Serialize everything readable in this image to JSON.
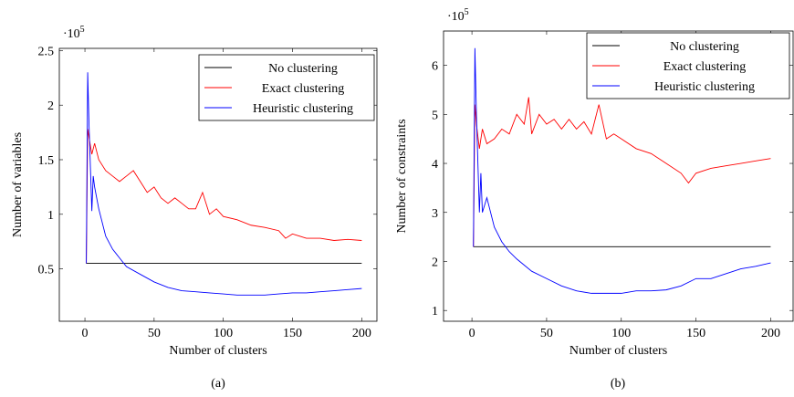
{
  "chart_data": [
    {
      "type": "line",
      "caption": "(a)",
      "x_label": "Number of clusters",
      "y_label": "Number of variables",
      "y_multiplier": {
        "base": "·10",
        "exponent": "5"
      },
      "xlim": [
        -18.5,
        211
      ],
      "xticks": [
        0,
        50,
        100,
        150,
        200
      ],
      "ylim": [
        0.02,
        2.52
      ],
      "yticks": [
        0.5,
        1,
        1.5,
        2,
        2.5
      ],
      "legend": "upper right",
      "series": [
        {
          "name": "No clustering",
          "color": "#000000",
          "x": [
            1,
            200
          ],
          "values": [
            0.55,
            0.55
          ]
        },
        {
          "name": "Exact clustering",
          "color": "#ff0000",
          "x": [
            1,
            2,
            3,
            5,
            7,
            10,
            15,
            20,
            25,
            30,
            35,
            40,
            45,
            50,
            55,
            60,
            65,
            70,
            75,
            80,
            85,
            90,
            95,
            100,
            110,
            120,
            130,
            140,
            145,
            150,
            155,
            160,
            170,
            180,
            190,
            200
          ],
          "values": [
            0.55,
            1.78,
            1.7,
            1.55,
            1.65,
            1.5,
            1.4,
            1.35,
            1.3,
            1.35,
            1.4,
            1.3,
            1.2,
            1.25,
            1.15,
            1.1,
            1.15,
            1.1,
            1.05,
            1.05,
            1.2,
            1.0,
            1.05,
            0.98,
            0.95,
            0.9,
            0.88,
            0.85,
            0.78,
            0.82,
            0.8,
            0.78,
            0.78,
            0.76,
            0.77,
            0.76
          ]
        },
        {
          "name": "Heuristic clustering",
          "color": "#0000ff",
          "x": [
            1,
            2,
            3,
            5,
            6,
            7,
            10,
            15,
            20,
            25,
            30,
            40,
            50,
            60,
            70,
            80,
            90,
            100,
            110,
            120,
            130,
            140,
            150,
            160,
            170,
            180,
            190,
            200
          ],
          "values": [
            0.55,
            2.3,
            1.8,
            1.03,
            1.35,
            1.25,
            1.05,
            0.8,
            0.68,
            0.6,
            0.52,
            0.45,
            0.38,
            0.33,
            0.3,
            0.29,
            0.28,
            0.27,
            0.26,
            0.26,
            0.26,
            0.27,
            0.28,
            0.28,
            0.29,
            0.3,
            0.31,
            0.32
          ]
        }
      ]
    },
    {
      "type": "line",
      "caption": "(b)",
      "x_label": "Number of clusters",
      "y_label": "Number of constraints",
      "y_multiplier": {
        "base": "·10",
        "exponent": "5"
      },
      "xlim": [
        -19,
        215
      ],
      "xticks": [
        0,
        50,
        100,
        150,
        200
      ],
      "ylim": [
        0.78,
        6.7
      ],
      "yticks": [
        1,
        2,
        3,
        4,
        5,
        6
      ],
      "legend": "upper right",
      "series": [
        {
          "name": "No clustering",
          "color": "#000000",
          "x": [
            1,
            200
          ],
          "values": [
            2.3,
            2.3
          ]
        },
        {
          "name": "Exact clustering",
          "color": "#ff0000",
          "x": [
            1,
            2,
            3,
            5,
            7,
            10,
            15,
            20,
            25,
            30,
            35,
            38,
            40,
            45,
            50,
            55,
            60,
            65,
            70,
            75,
            80,
            85,
            90,
            95,
            100,
            110,
            120,
            130,
            140,
            145,
            150,
            160,
            170,
            180,
            190,
            200
          ],
          "values": [
            2.3,
            5.2,
            4.8,
            4.3,
            4.7,
            4.4,
            4.5,
            4.7,
            4.6,
            5.0,
            4.8,
            5.35,
            4.6,
            5.0,
            4.8,
            4.9,
            4.7,
            4.9,
            4.7,
            4.85,
            4.6,
            5.2,
            4.5,
            4.6,
            4.5,
            4.3,
            4.2,
            4.0,
            3.8,
            3.6,
            3.8,
            3.9,
            3.95,
            4.0,
            4.05,
            4.1
          ]
        },
        {
          "name": "Heuristic clustering",
          "color": "#0000ff",
          "x": [
            1,
            2,
            3,
            5,
            6,
            7,
            10,
            15,
            20,
            25,
            30,
            40,
            50,
            60,
            70,
            80,
            90,
            100,
            110,
            120,
            130,
            140,
            150,
            160,
            170,
            180,
            190,
            200
          ],
          "values": [
            2.3,
            6.35,
            5.0,
            3.0,
            3.8,
            3.0,
            3.3,
            2.7,
            2.4,
            2.2,
            2.05,
            1.8,
            1.65,
            1.5,
            1.4,
            1.35,
            1.35,
            1.35,
            1.4,
            1.4,
            1.42,
            1.5,
            1.65,
            1.65,
            1.75,
            1.85,
            1.9,
            1.97
          ]
        }
      ]
    }
  ]
}
